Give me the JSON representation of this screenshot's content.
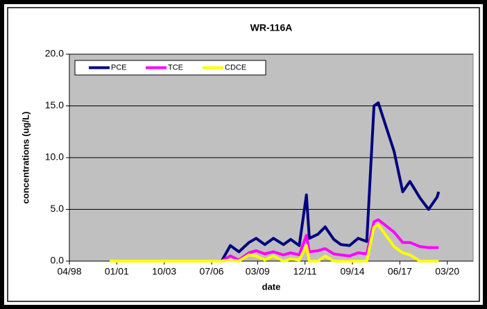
{
  "chart_data": {
    "type": "line",
    "title": "WR-116A",
    "x_label": "date",
    "y_label": "concentrations (ug/L)",
    "x": [
      "2000-08",
      "2007-02",
      "2007-08",
      "2008-02",
      "2008-09",
      "2009-02",
      "2009-08",
      "2010-02",
      "2010-09",
      "2011-02",
      "2011-08",
      "2012-01",
      "2012-03",
      "2012-09",
      "2013-02",
      "2013-08",
      "2014-01",
      "2014-07",
      "2015-01",
      "2015-07",
      "2015-12",
      "2016-03",
      "2017-02",
      "2017-08",
      "2018-01",
      "2018-08",
      "2019-02",
      "2019-08",
      "2019-09"
    ],
    "series": [
      {
        "name": "PCE",
        "color": "#000080",
        "values": [
          0,
          0,
          1.5,
          0.9,
          1.8,
          2.2,
          1.6,
          2.2,
          1.6,
          2.1,
          1.5,
          6.4,
          2.2,
          2.6,
          3.3,
          2.1,
          1.6,
          1.5,
          2.2,
          1.9,
          15.0,
          15.3,
          10.6,
          6.7,
          7.7,
          6.1,
          5.0,
          6.2,
          6.7
        ]
      },
      {
        "name": "TCE",
        "color": "#ff00ff",
        "values": [
          0,
          0,
          0.5,
          0.1,
          0.8,
          1.0,
          0.7,
          0.9,
          0.6,
          0.8,
          0.6,
          2.5,
          0.9,
          1.0,
          1.2,
          0.7,
          0.6,
          0.5,
          0.8,
          0.7,
          3.8,
          4.0,
          2.8,
          1.8,
          1.8,
          1.4,
          1.3,
          1.3,
          1.3
        ]
      },
      {
        "name": "CDCE",
        "color": "#ffff00",
        "values": [
          0,
          0,
          0.1,
          0,
          0.6,
          0.5,
          0.1,
          0.5,
          0,
          0.2,
          0.1,
          1.5,
          0,
          0,
          0.5,
          0,
          0,
          0,
          0,
          0,
          3.3,
          3.5,
          1.4,
          0.8,
          0.6,
          0,
          0,
          0,
          0
        ]
      }
    ],
    "xlim": [
      "1998-04",
      "2021-09"
    ],
    "xticks": [
      {
        "value": "1998-04",
        "label": "04/98"
      },
      {
        "value": "2001-01",
        "label": "01/01"
      },
      {
        "value": "2003-10",
        "label": "10/03"
      },
      {
        "value": "2006-07",
        "label": "07/06"
      },
      {
        "value": "2009-03",
        "label": "03/09"
      },
      {
        "value": "2011-12",
        "label": "12/11"
      },
      {
        "value": "2014-09",
        "label": "09/14"
      },
      {
        "value": "2017-06",
        "label": "06/17"
      },
      {
        "value": "2020-03",
        "label": "03/20"
      }
    ],
    "ylim": [
      0,
      20
    ],
    "yticks": [
      {
        "value": 0,
        "label": "0.0"
      },
      {
        "value": 5,
        "label": "5.0"
      },
      {
        "value": 10,
        "label": "10.0"
      },
      {
        "value": 15,
        "label": "15.0"
      },
      {
        "value": 20,
        "label": "20.0"
      }
    ],
    "grid": true,
    "legend": "top-left",
    "plot_background": "#c0c0c0"
  }
}
